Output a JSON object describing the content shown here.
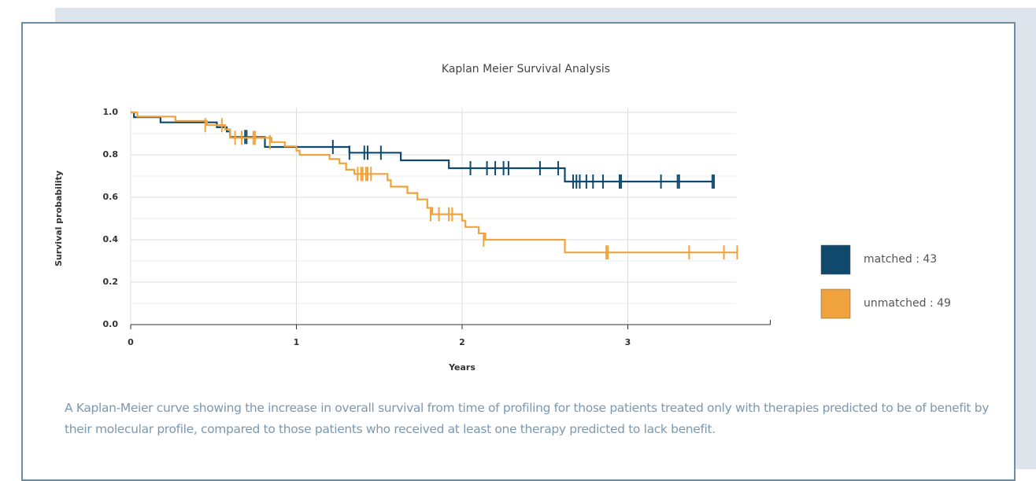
{
  "chart_data": {
    "type": "kaplan-meier",
    "title": "Kaplan Meier Survival Analysis",
    "x_label": "Years",
    "y_label": "Survival probability",
    "xlim": [
      0,
      3.86
    ],
    "xticks": [
      0,
      1,
      2,
      3
    ],
    "ylim": [
      0,
      1
    ],
    "yticks": [
      {
        "value": 0,
        "label": "0.0"
      },
      0.2,
      0.4,
      0.6,
      0.8,
      {
        "value": 1,
        "label": "1.0"
      }
    ],
    "yminor": [
      0.1,
      0.3,
      0.5,
      0.7,
      0.9
    ],
    "grid": true,
    "series": [
      {
        "name": "matched : 43",
        "color": "#0f4a6d",
        "x": [
          0,
          0.02,
          0.18,
          0.52,
          0.58,
          0.6,
          0.81,
          1.32,
          1.63,
          1.92,
          2.62,
          3.52
        ],
        "values": [
          1,
          0.977,
          0.953,
          0.93,
          0.91,
          0.884,
          0.837,
          0.81,
          0.774,
          0.737,
          0.674,
          0.674
        ],
        "censor_x": [
          0.69,
          0.7,
          1.22,
          1.32,
          1.41,
          1.43,
          1.51,
          2.05,
          2.15,
          2.2,
          2.25,
          2.28,
          2.47,
          2.58,
          2.67,
          2.69,
          2.71,
          2.75,
          2.79,
          2.85,
          2.95,
          2.96,
          3.2,
          3.3,
          3.31,
          3.51,
          3.52
        ],
        "censor_values": [
          0.884,
          0.884,
          0.837,
          0.81,
          0.81,
          0.81,
          0.81,
          0.737,
          0.737,
          0.737,
          0.737,
          0.737,
          0.737,
          0.737,
          0.674,
          0.674,
          0.674,
          0.674,
          0.674,
          0.674,
          0.674,
          0.674,
          0.674,
          0.674,
          0.674,
          0.674,
          0.674
        ]
      },
      {
        "name": "unmatched : 49",
        "color": "#f0a33c",
        "x": [
          0,
          0.04,
          0.27,
          0.46,
          0.57,
          0.6,
          0.85,
          0.93,
          1.0,
          1.02,
          1.2,
          1.26,
          1.3,
          1.35,
          1.55,
          1.57,
          1.67,
          1.73,
          1.79,
          1.82,
          2.0,
          2.02,
          2.1,
          2.14,
          2.62,
          3.66
        ],
        "values": [
          1,
          0.98,
          0.96,
          0.94,
          0.92,
          0.88,
          0.86,
          0.84,
          0.82,
          0.8,
          0.78,
          0.76,
          0.73,
          0.71,
          0.68,
          0.65,
          0.62,
          0.59,
          0.55,
          0.52,
          0.49,
          0.46,
          0.43,
          0.4,
          0.34,
          0.34
        ],
        "censor_x": [
          0.45,
          0.55,
          0.63,
          0.67,
          0.74,
          0.75,
          0.84,
          1.37,
          1.39,
          1.4,
          1.42,
          1.43,
          1.45,
          1.81,
          1.86,
          1.92,
          1.94,
          2.13,
          2.87,
          2.88,
          3.37,
          3.58,
          3.66
        ],
        "censor_values": [
          0.94,
          0.94,
          0.88,
          0.88,
          0.88,
          0.88,
          0.86,
          0.71,
          0.71,
          0.71,
          0.71,
          0.71,
          0.71,
          0.52,
          0.52,
          0.52,
          0.52,
          0.4,
          0.34,
          0.34,
          0.34,
          0.34,
          0.34
        ]
      }
    ]
  },
  "caption": "A Kaplan-Meier curve showing the increase in overall survival from time of profiling for those patients treated only with therapies predicted to be of benefit by their molecular profile, compared to those patients who received at least one therapy predicted to lack benefit."
}
